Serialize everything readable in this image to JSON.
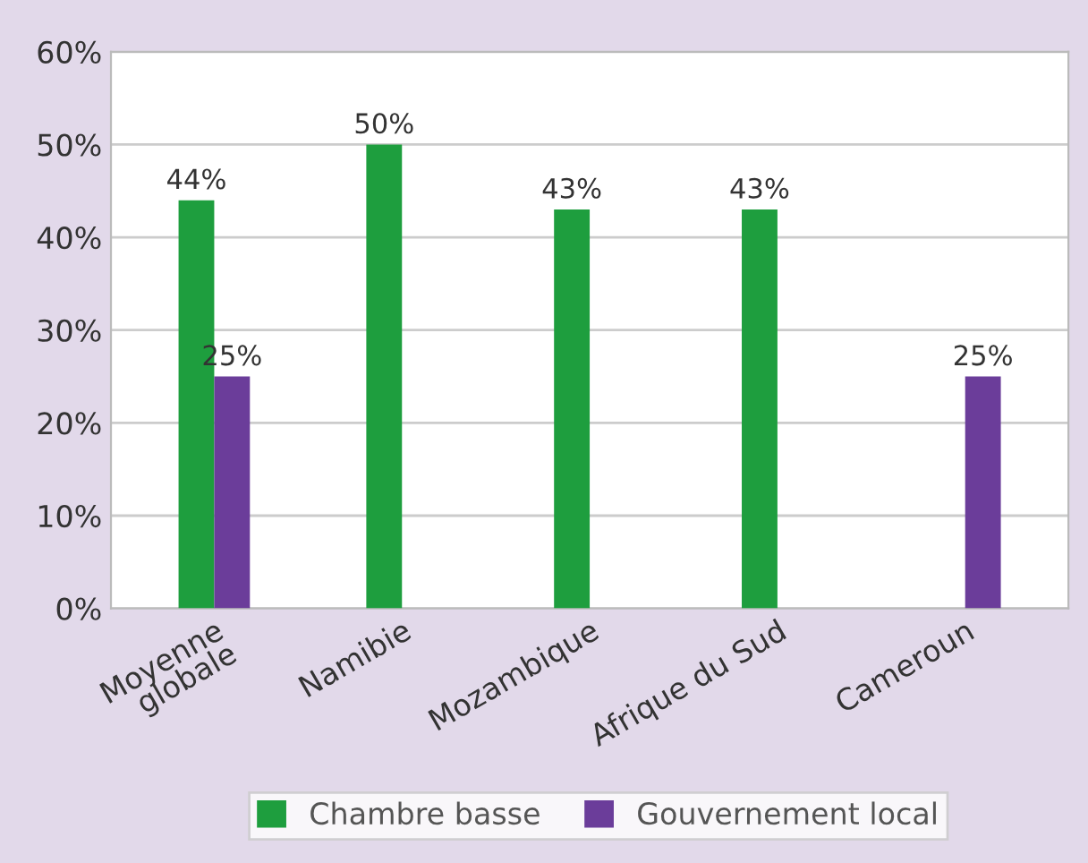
{
  "chart_data": {
    "type": "bar",
    "categories": [
      "Moyenne\nglobale",
      "Namibie",
      "Mozambique",
      "Afrique du Sud",
      "Cameroun"
    ],
    "series": [
      {
        "name": "Chambre basse",
        "color": "#1e9e3e",
        "values": [
          44,
          50,
          43,
          43,
          null
        ]
      },
      {
        "name": "Gouvernement local",
        "color": "#6b3d9a",
        "values": [
          25,
          null,
          null,
          null,
          25
        ]
      }
    ],
    "ylim": [
      0,
      60
    ],
    "yticks": [
      {
        "value": 0,
        "label": "0%"
      },
      {
        "value": 10,
        "label": "10%"
      },
      {
        "value": 20,
        "label": "20%"
      },
      {
        "value": 30,
        "label": "30%"
      },
      {
        "value": 40,
        "label": "40%"
      },
      {
        "value": 50,
        "label": "50%"
      },
      {
        "value": 60,
        "label": "60%"
      }
    ],
    "value_labels": [
      [
        "44%",
        "50%",
        "43%",
        "43%",
        null
      ],
      [
        "25%",
        null,
        null,
        null,
        "25%"
      ]
    ],
    "grid": "y",
    "legend": "bottom"
  }
}
